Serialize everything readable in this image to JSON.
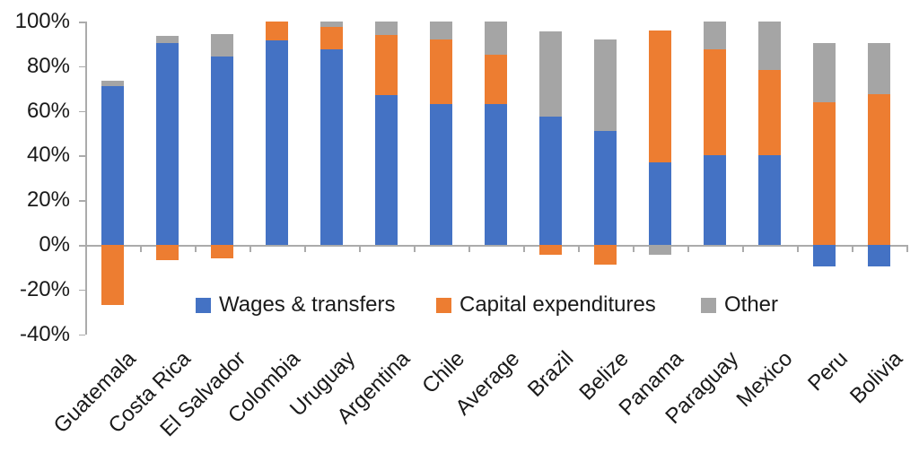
{
  "chart_data": {
    "type": "bar",
    "stacked": true,
    "title": "",
    "xlabel": "",
    "ylabel": "",
    "grid": false,
    "legend_position": "bottom-inside",
    "ylim": [
      -40,
      100
    ],
    "yticks": [
      100,
      80,
      60,
      40,
      20,
      0,
      -20,
      -40
    ],
    "ytick_labels": [
      "100%",
      "80%",
      "60%",
      "40%",
      "20%",
      "0%",
      "-20%",
      "-40%"
    ],
    "categories": [
      "Guatemala",
      "Costa Rica",
      "El Salvador",
      "Colombia",
      "Uruguay",
      "Argentina",
      "Chile",
      "Average",
      "Brazil",
      "Belize",
      "Panama",
      "Paraguay",
      "Mexico",
      "Peru",
      "Bolivia"
    ],
    "series": [
      {
        "name": "Wages & transfers",
        "color": "#4472C4",
        "values": [
          71,
          90.5,
          84.5,
          91.5,
          87.5,
          67,
          63,
          63,
          57.5,
          51,
          37,
          40,
          40,
          -9.5,
          -9.5
        ]
      },
      {
        "name": "Capital expenditures",
        "color": "#ED7D31",
        "values": [
          -27,
          -7,
          -6,
          8.5,
          10,
          27,
          29,
          22,
          -4.5,
          -9,
          59,
          47.5,
          38.5,
          64,
          67.5
        ]
      },
      {
        "name": "Other",
        "color": "#A5A5A5",
        "values": [
          2.5,
          3,
          10,
          0,
          2.5,
          6,
          8,
          15,
          38,
          41,
          -4.5,
          12.5,
          21.5,
          26.5,
          23
        ]
      }
    ]
  },
  "axis": {
    "color": "#ababab"
  }
}
